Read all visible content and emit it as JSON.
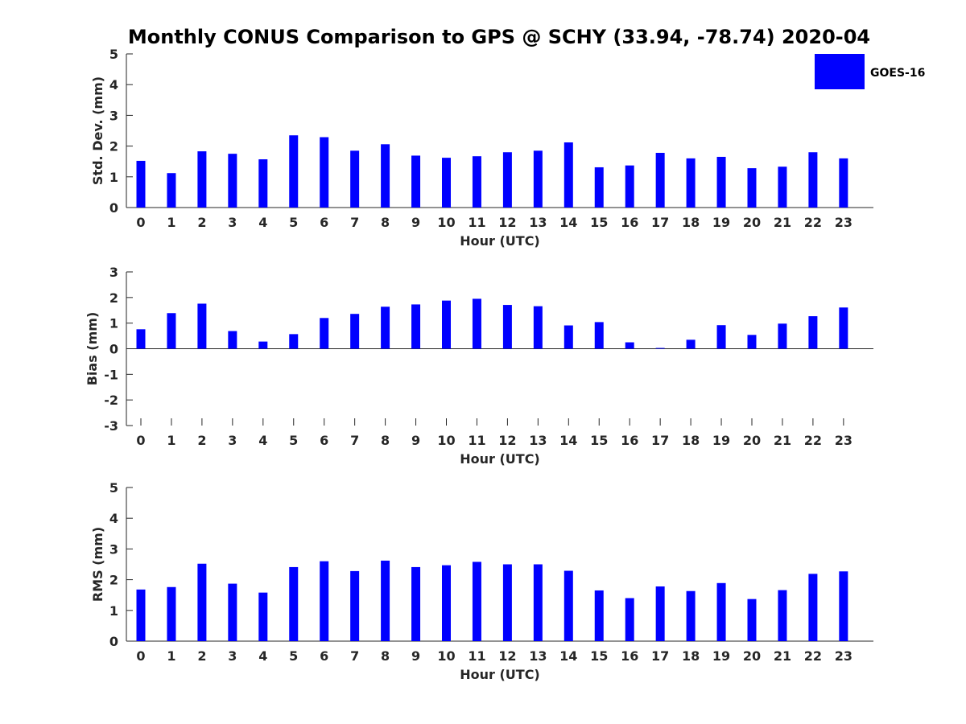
{
  "title": "Monthly CONUS Comparison to GPS @ SCHY (33.94, -78.74) 2020-04",
  "legend": {
    "label": "GOES-16",
    "color": "#0000ff"
  },
  "chart_data": [
    {
      "type": "bar",
      "categories": [
        "0",
        "1",
        "2",
        "3",
        "4",
        "5",
        "6",
        "7",
        "8",
        "9",
        "10",
        "11",
        "12",
        "13",
        "14",
        "15",
        "16",
        "17",
        "18",
        "19",
        "20",
        "21",
        "22",
        "23"
      ],
      "series": [
        {
          "name": "GOES-16",
          "values": [
            1.52,
            1.12,
            1.83,
            1.75,
            1.57,
            2.35,
            2.29,
            1.85,
            2.06,
            1.69,
            1.62,
            1.67,
            1.8,
            1.85,
            2.12,
            1.31,
            1.37,
            1.78,
            1.6,
            1.65,
            1.28,
            1.33,
            1.8,
            1.6
          ]
        }
      ],
      "xlabel": "Hour (UTC)",
      "ylabel": "Std. Dev. (mm)",
      "ylim": [
        0,
        5
      ],
      "yticks": [
        "0",
        "1",
        "2",
        "3",
        "4",
        "5"
      ]
    },
    {
      "type": "bar",
      "categories": [
        "0",
        "1",
        "2",
        "3",
        "4",
        "5",
        "6",
        "7",
        "8",
        "9",
        "10",
        "11",
        "12",
        "13",
        "14",
        "15",
        "16",
        "17",
        "18",
        "19",
        "20",
        "21",
        "22",
        "23"
      ],
      "series": [
        {
          "name": "GOES-16",
          "values": [
            0.76,
            1.39,
            1.76,
            0.69,
            0.28,
            0.57,
            1.2,
            1.36,
            1.64,
            1.73,
            1.88,
            1.95,
            1.71,
            1.66,
            0.91,
            1.04,
            0.25,
            0.03,
            0.35,
            0.92,
            0.54,
            0.98,
            1.27,
            1.61
          ]
        }
      ],
      "xlabel": "Hour (UTC)",
      "ylabel": "Bias (mm)",
      "ylim": [
        -3,
        3
      ],
      "yticks": [
        "-3",
        "-2",
        "-1",
        "0",
        "1",
        "2",
        "3"
      ]
    },
    {
      "type": "bar",
      "categories": [
        "0",
        "1",
        "2",
        "3",
        "4",
        "5",
        "6",
        "7",
        "8",
        "9",
        "10",
        "11",
        "12",
        "13",
        "14",
        "15",
        "16",
        "17",
        "18",
        "19",
        "20",
        "21",
        "22",
        "23"
      ],
      "series": [
        {
          "name": "GOES-16",
          "values": [
            1.68,
            1.76,
            2.52,
            1.87,
            1.58,
            2.41,
            2.6,
            2.28,
            2.62,
            2.41,
            2.47,
            2.58,
            2.5,
            2.5,
            2.29,
            1.65,
            1.4,
            1.78,
            1.63,
            1.89,
            1.37,
            1.66,
            2.19,
            2.27
          ]
        }
      ],
      "xlabel": "Hour (UTC)",
      "ylabel": "RMS (mm)",
      "ylim": [
        0,
        5
      ],
      "yticks": [
        "0",
        "1",
        "2",
        "3",
        "4",
        "5"
      ]
    }
  ]
}
